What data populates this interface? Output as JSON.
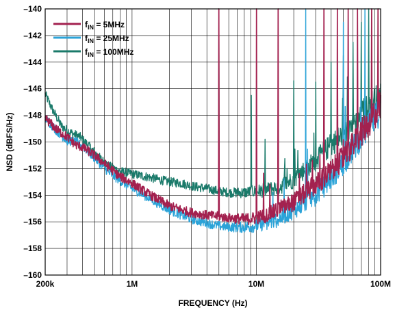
{
  "chart_data": {
    "type": "line",
    "xlabel": "FREQUENCY (Hz)",
    "ylabel": "NSD (dBFS/Hz)",
    "xscale": "log",
    "xlim": [
      200000,
      100000000
    ],
    "ylim": [
      -160,
      -140
    ],
    "x_ticks": [
      {
        "value": 200000,
        "label": "200k"
      },
      {
        "value": 1000000,
        "label": "1M"
      },
      {
        "value": 10000000,
        "label": "10M"
      },
      {
        "value": 100000000,
        "label": "100M"
      }
    ],
    "y_ticks": [
      -160,
      -158,
      -156,
      -154,
      -152,
      -150,
      -148,
      -146,
      -144,
      -142,
      -140
    ],
    "y_tick_labels": [
      "–160",
      "–158",
      "–156",
      "–154",
      "–152",
      "–150",
      "–148",
      "–146",
      "–144",
      "–142",
      "–140"
    ],
    "grid": true,
    "legend": {
      "position": "top-left",
      "entries": [
        {
          "sym": "f",
          "sub": "IN",
          "rest": " = 5MHz",
          "color": "#a3214f"
        },
        {
          "sym": "f",
          "sub": "IN",
          "rest": " = 25MHz",
          "color": "#2ba3d8"
        },
        {
          "sym": "f",
          "sub": "IN",
          "rest": " = 100MHz",
          "color": "#1a7a6a"
        }
      ]
    },
    "series": [
      {
        "color": "#1a7a6a",
        "points": [
          [
            200000,
            -146.4
          ],
          [
            230000,
            -147.6
          ],
          [
            270000,
            -148.8
          ],
          [
            320000,
            -149.3
          ],
          [
            380000,
            -149.6
          ],
          [
            450000,
            -150.3
          ],
          [
            550000,
            -151.2
          ],
          [
            650000,
            -151.8
          ],
          [
            800000,
            -152.2
          ],
          [
            1000000,
            -152.4
          ],
          [
            1300000,
            -152.6
          ],
          [
            1600000,
            -152.8
          ],
          [
            2000000,
            -153.0
          ],
          [
            2500000,
            -153.1
          ],
          [
            3000000,
            -153.3
          ],
          [
            4000000,
            -153.5
          ],
          [
            5000000,
            -153.7
          ],
          [
            6000000,
            -153.8
          ],
          [
            7000000,
            -153.8
          ],
          [
            8000000,
            -153.8
          ],
          [
            10000000,
            -153.7
          ],
          [
            12000000,
            -153.6
          ],
          [
            15000000,
            -153.4
          ],
          [
            20000000,
            -152.8
          ],
          [
            25000000,
            -152.0
          ],
          [
            30000000,
            -151.4
          ],
          [
            40000000,
            -150.2
          ],
          [
            50000000,
            -149.4
          ],
          [
            60000000,
            -148.6
          ],
          [
            70000000,
            -147.9
          ],
          [
            80000000,
            -147.4
          ],
          [
            90000000,
            -146.9
          ],
          [
            100000000,
            -146.6
          ]
        ],
        "spurs": [
          [
            5000000,
            -140
          ],
          [
            9100000,
            -146.5
          ],
          [
            20000000,
            -145.4
          ],
          [
            30000000,
            -145.5
          ],
          [
            40000000,
            -144.0
          ],
          [
            50000000,
            -143.5
          ],
          [
            60000000,
            -142.5
          ],
          [
            70000000,
            -141.0
          ],
          [
            80000000,
            -140.0
          ]
        ]
      },
      {
        "color": "#2ba3d8",
        "points": [
          [
            200000,
            -148.2
          ],
          [
            250000,
            -149.2
          ],
          [
            300000,
            -149.9
          ],
          [
            350000,
            -150.0
          ],
          [
            400000,
            -150.3
          ],
          [
            500000,
            -151.2
          ],
          [
            650000,
            -152.3
          ],
          [
            800000,
            -152.9
          ],
          [
            1000000,
            -153.5
          ],
          [
            1300000,
            -154.1
          ],
          [
            1600000,
            -154.6
          ],
          [
            2000000,
            -155.1
          ],
          [
            2500000,
            -155.5
          ],
          [
            3000000,
            -155.8
          ],
          [
            4000000,
            -156.1
          ],
          [
            5000000,
            -156.3
          ],
          [
            6000000,
            -156.4
          ],
          [
            8000000,
            -156.4
          ],
          [
            10000000,
            -156.3
          ],
          [
            12000000,
            -156.1
          ],
          [
            15000000,
            -155.8
          ],
          [
            20000000,
            -155.1
          ],
          [
            25000000,
            -154.5
          ],
          [
            30000000,
            -154.0
          ],
          [
            40000000,
            -152.7
          ],
          [
            50000000,
            -151.6
          ],
          [
            60000000,
            -150.5
          ],
          [
            70000000,
            -149.6
          ],
          [
            80000000,
            -148.8
          ],
          [
            90000000,
            -148.2
          ],
          [
            100000000,
            -147.5
          ]
        ],
        "spurs": [
          [
            25000000,
            -140
          ],
          [
            50000000,
            -141
          ],
          [
            75000000,
            -140
          ]
        ]
      },
      {
        "color": "#a3214f",
        "points": [
          [
            200000,
            -148.2
          ],
          [
            250000,
            -149.1
          ],
          [
            300000,
            -149.6
          ],
          [
            350000,
            -150.2
          ],
          [
            400000,
            -150.4
          ],
          [
            500000,
            -151.0
          ],
          [
            650000,
            -151.9
          ],
          [
            800000,
            -152.6
          ],
          [
            1000000,
            -153.1
          ],
          [
            1300000,
            -153.8
          ],
          [
            1600000,
            -154.3
          ],
          [
            2000000,
            -154.8
          ],
          [
            2500000,
            -155.1
          ],
          [
            3000000,
            -155.3
          ],
          [
            4000000,
            -155.5
          ],
          [
            5000000,
            -155.6
          ],
          [
            6000000,
            -155.7
          ],
          [
            8000000,
            -155.8
          ],
          [
            10000000,
            -155.7
          ],
          [
            12000000,
            -155.5
          ],
          [
            15000000,
            -155.1
          ],
          [
            20000000,
            -154.5
          ],
          [
            25000000,
            -153.8
          ],
          [
            30000000,
            -153.2
          ],
          [
            40000000,
            -152.2
          ],
          [
            50000000,
            -151.2
          ],
          [
            60000000,
            -150.2
          ],
          [
            70000000,
            -149.3
          ],
          [
            80000000,
            -148.6
          ],
          [
            90000000,
            -147.9
          ],
          [
            100000000,
            -147.3
          ]
        ],
        "spurs": [
          [
            5000000,
            -140
          ],
          [
            10000000,
            -140
          ],
          [
            15000000,
            -140
          ],
          [
            35000000,
            -140
          ],
          [
            45000000,
            -140
          ],
          [
            55000000,
            -140
          ],
          [
            65000000,
            -140
          ],
          [
            85000000,
            -140
          ],
          [
            95000000,
            -140
          ]
        ]
      }
    ]
  }
}
